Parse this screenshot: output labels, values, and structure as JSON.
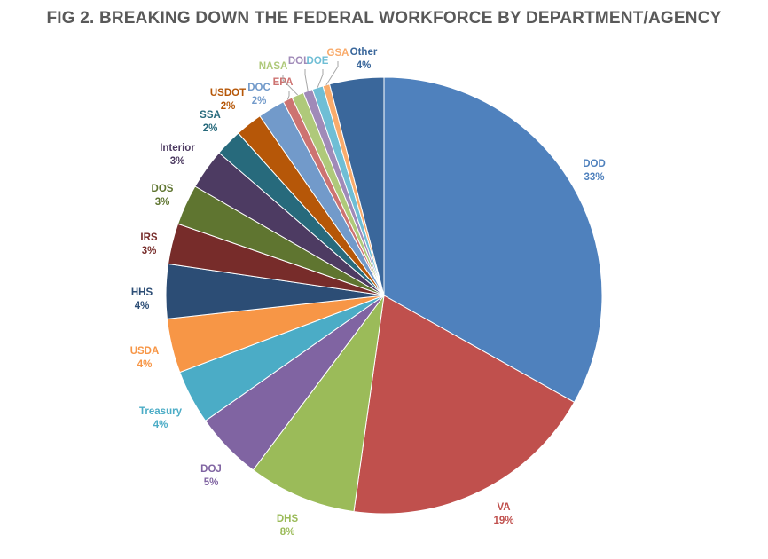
{
  "chart_data": {
    "type": "pie",
    "title": "FIG 2. BREAKING DOWN THE FEDERAL WORKFORCE BY DEPARTMENT/AGENCY",
    "categories": [
      "DOD",
      "VA",
      "DHS",
      "DOJ",
      "Treasury",
      "USDA",
      "HHS",
      "IRS",
      "DOS",
      "Interior",
      "SSA",
      "USDOT",
      "DOC",
      "EPA",
      "NASA",
      "DOL",
      "DOE",
      "GSA",
      "Other"
    ],
    "values": [
      33,
      19,
      8,
      5,
      4,
      4,
      4,
      3,
      3,
      3,
      2,
      2,
      2,
      0.7,
      0.9,
      0.7,
      0.8,
      0.5,
      4
    ],
    "labels": [
      "33%",
      "19%",
      "8%",
      "5%",
      "4%",
      "4%",
      "4%",
      "3%",
      "3%",
      "3%",
      "2%",
      "2%",
      "2%",
      "",
      "",
      "",
      "",
      "",
      "4%"
    ],
    "colors": [
      "#4F81BD",
      "#C0504D",
      "#9BBB59",
      "#8064A2",
      "#4BACC6",
      "#F79646",
      "#2C4D75",
      "#772C2A",
      "#5F7530",
      "#4D3B62",
      "#276A7C",
      "#B65708",
      "#729ACA",
      "#CD7371",
      "#AFC97A",
      "#A08AB8",
      "#6FBED5",
      "#F9AB6B",
      "#3A679B"
    ],
    "legend": "none"
  }
}
